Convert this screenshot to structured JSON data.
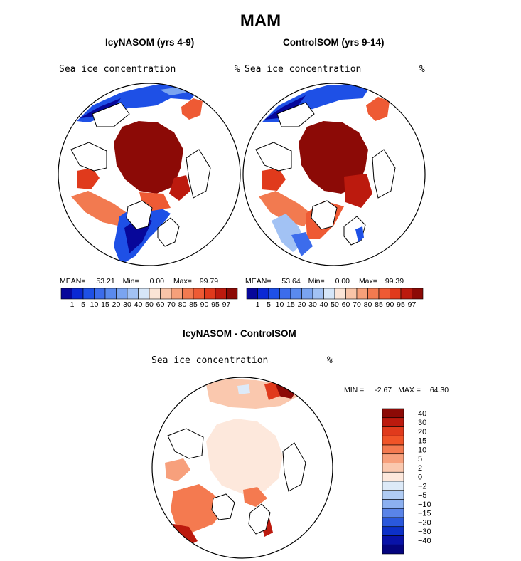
{
  "figure": {
    "title": "MAM",
    "panel_left": {
      "title": "IcyNASOM (yrs 4-9)",
      "field_label": "Sea ice concentration",
      "unit": "%",
      "mean_label": "MEAN=",
      "mean": "53.21",
      "min_label": "Min=",
      "min": "0.00",
      "max_label": "Max=",
      "max": "99.79"
    },
    "panel_right": {
      "title": "ControlSOM (yrs 9-14)",
      "field_label": "Sea ice concentration",
      "unit": "%",
      "mean_label": "MEAN=",
      "mean": "53.64",
      "min_label": "Min=",
      "min": "0.00",
      "max_label": "Max=",
      "max": "99.39"
    },
    "panel_diff": {
      "title": "IcyNASOM - ControlSOM",
      "field_label": "Sea ice concentration",
      "unit": "%",
      "min_label": "MIN =",
      "min": "-2.67",
      "max_label": "MAX =",
      "max": "64.30"
    }
  },
  "chart_data": [
    {
      "type": "heatmap",
      "title": "IcyNASOM (yrs 4-9)",
      "projection": "north-polar-stereographic",
      "variable": "Sea ice concentration",
      "unit": "%",
      "stats": {
        "mean": 53.21,
        "min": 0.0,
        "max": 99.79
      },
      "colorbar": {
        "orientation": "horizontal",
        "levels": [
          1,
          5,
          10,
          15,
          20,
          30,
          40,
          50,
          60,
          70,
          80,
          85,
          90,
          95,
          97
        ],
        "colors": [
          "#07079a",
          "#0a28d4",
          "#1e50e6",
          "#3c6cec",
          "#5a8aee",
          "#7aa4f0",
          "#a2c2f4",
          "#d6e6f8",
          "#fbe4d6",
          "#f8c4a8",
          "#f6a07a",
          "#f27a50",
          "#ee5a34",
          "#e03a1c",
          "#bc1a0e",
          "#8c0a06"
        ]
      }
    },
    {
      "type": "heatmap",
      "title": "ControlSOM (yrs 9-14)",
      "projection": "north-polar-stereographic",
      "variable": "Sea ice concentration",
      "unit": "%",
      "stats": {
        "mean": 53.64,
        "min": 0.0,
        "max": 99.39
      },
      "colorbar": {
        "orientation": "horizontal",
        "levels": [
          1,
          5,
          10,
          15,
          20,
          30,
          40,
          50,
          60,
          70,
          80,
          85,
          90,
          95,
          97
        ],
        "colors": [
          "#07079a",
          "#0a28d4",
          "#1e50e6",
          "#3c6cec",
          "#5a8aee",
          "#7aa4f0",
          "#a2c2f4",
          "#d6e6f8",
          "#fbe4d6",
          "#f8c4a8",
          "#f6a07a",
          "#f27a50",
          "#ee5a34",
          "#e03a1c",
          "#bc1a0e",
          "#8c0a06"
        ]
      }
    },
    {
      "type": "heatmap",
      "title": "IcyNASOM - ControlSOM",
      "projection": "north-polar-stereographic",
      "variable": "Sea ice concentration",
      "unit": "%",
      "stats": {
        "min": -2.67,
        "max": 64.3
      },
      "colorbar": {
        "orientation": "vertical",
        "levels": [
          "40",
          "30",
          "20",
          "15",
          "10",
          "5",
          "2",
          "0",
          "−2",
          "−5",
          "−10",
          "−15",
          "−20",
          "−30",
          "−40"
        ],
        "colors_top_to_bottom": [
          "#8c0a06",
          "#bc1a0e",
          "#e03a1c",
          "#f05428",
          "#f47a50",
          "#f7a07c",
          "#fac8ae",
          "#fde8dc",
          "#ddeaf8",
          "#b0ccf4",
          "#8cb0f0",
          "#5a84e8",
          "#2a58dc",
          "#0c30c8",
          "#0812a8",
          "#04047e"
        ]
      }
    }
  ]
}
